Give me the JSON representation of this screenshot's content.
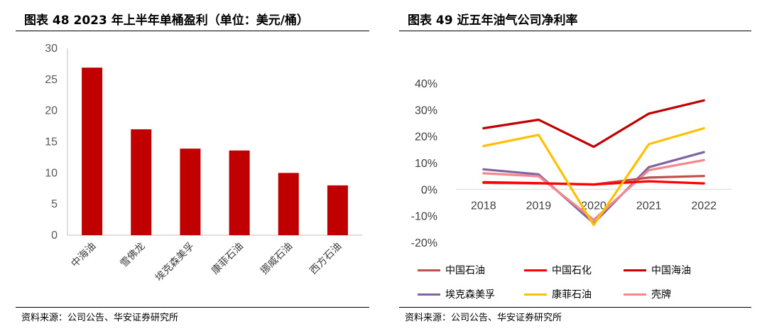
{
  "left": {
    "title": "图表 48  2023 年上半年单桶盈利（单位：美元/桶）",
    "source": "资料来源：公司公告、华安证券研究所"
  },
  "right": {
    "title": "图表 49 近五年油气公司净利率",
    "source": "资料来源：公司公告、华安证券研究所"
  },
  "colors": {
    "bar": "#c00000",
    "cnpc": "#c0504d",
    "sinopec": "#ff0000",
    "cnooc": "#c00000",
    "exxon": "#8064a2",
    "conoco": "#ffc000",
    "shell": "#f4868c"
  },
  "chart_data": [
    {
      "type": "bar",
      "categories": [
        "中海油",
        "雪佛龙",
        "埃克森美孚",
        "康菲石油",
        "挪威石油",
        "西方石油"
      ],
      "values": [
        26.9,
        17.0,
        13.9,
        13.6,
        10.0,
        8.0
      ],
      "ylim": [
        0,
        30
      ],
      "yticks": [
        "0",
        "5",
        "10",
        "15",
        "20",
        "25",
        "30"
      ],
      "grid": false,
      "legend": "none"
    },
    {
      "type": "line",
      "x": [
        "2018",
        "2019",
        "2020",
        "2021",
        "2022"
      ],
      "series": [
        {
          "name": "中国石油",
          "values": [
            2.4,
            2.2,
            1.8,
            4.4,
            5.0
          ]
        },
        {
          "name": "中国石化",
          "values": [
            2.7,
            2.3,
            1.8,
            3.0,
            2.2
          ]
        },
        {
          "name": "中国海油",
          "values": [
            23.0,
            26.2,
            16.0,
            28.5,
            33.5
          ]
        },
        {
          "name": "埃克森美孚",
          "values": [
            7.5,
            5.6,
            -12.8,
            8.3,
            14.0
          ]
        },
        {
          "name": "康菲石油",
          "values": [
            16.3,
            20.5,
            -13.5,
            17.0,
            23.0
          ]
        },
        {
          "name": "壳牌",
          "values": [
            6.0,
            4.9,
            -11.5,
            7.2,
            11.0
          ]
        }
      ],
      "ylim": [
        -20,
        40
      ],
      "yticks": [
        "-20%",
        "-10%",
        "0%",
        "10%",
        "20%",
        "30%",
        "40%"
      ],
      "grid": false,
      "legend": "bottom"
    }
  ]
}
